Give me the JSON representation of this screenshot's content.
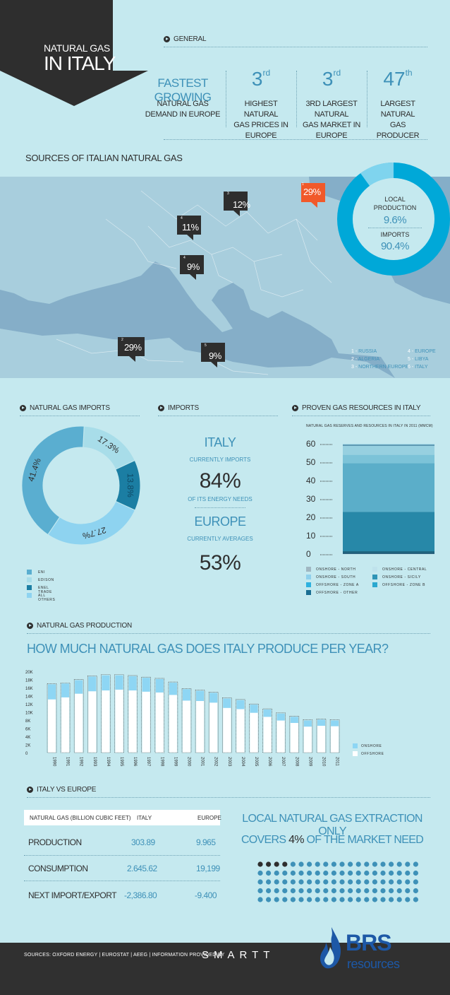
{
  "title": {
    "line1": "NATURAL GAS",
    "line2": "IN ITALY"
  },
  "general": {
    "header": "GENERAL",
    "stats": [
      {
        "big": "FASTEST GROWING",
        "sup": "",
        "desc1": "NATURAL GAS",
        "desc2": "DEMAND IN EUROPE"
      },
      {
        "big": "3",
        "sup": "rd",
        "desc1": "HIGHEST NATURAL",
        "desc2": "GAS PRICES IN EUROPE"
      },
      {
        "big": "3",
        "sup": "rd",
        "desc1": "3RD LARGEST NATURAL",
        "desc2": "GAS MARKET IN EUROPE"
      },
      {
        "big": "47",
        "sup": "th",
        "desc1": "LARGEST NATURAL",
        "desc2": "GAS PRODUCER"
      }
    ]
  },
  "sources": {
    "header": "SOURCES OF ITALIAN NATURAL GAS",
    "pins": [
      {
        "num": "1",
        "value": "29%"
      },
      {
        "num": "3",
        "value": "12%"
      },
      {
        "num": "4",
        "value": "11%"
      },
      {
        "num": "4",
        "value": "9%"
      },
      {
        "num": "2",
        "value": "29%"
      },
      {
        "num": "5",
        "value": "9%"
      }
    ],
    "local": {
      "label1": "LOCAL",
      "label2": "PRODUCTION",
      "value": "9.6%"
    },
    "imports": {
      "label": "IMPORTS",
      "value": "90.4%"
    },
    "legend": [
      {
        "num": "1",
        "name": "RUSSIA"
      },
      {
        "num": "2",
        "name": "ALGERIA"
      },
      {
        "num": "3",
        "name": "NORTHERN EUROPE"
      },
      {
        "num": "4",
        "name": "EUROPE"
      },
      {
        "num": "5",
        "name": "LIBYA"
      },
      {
        "num": "6",
        "name": "ITALY"
      }
    ]
  },
  "imports_section": {
    "header1": "NATURAL GAS IMPORTS",
    "header2": "IMPORTS",
    "header3": "PROVEN GAS RESOURCES IN ITALY",
    "italy": "ITALY",
    "currently_imports": "CURRENTLY IMPORTS",
    "italy_value": "84%",
    "energy_needs": "OF ITS ENERGY NEEDS",
    "europe": "EUROPE",
    "currently_averages": "CURRENTLY AVERAGES",
    "europe_value": "53%"
  },
  "colors": {
    "accent": "#3e91b8",
    "dark": "#2e2e2e",
    "bg": "#c5e9ef",
    "orange": "#f1592a"
  },
  "chart_data": [
    {
      "type": "pie",
      "labels": [
        "ENI",
        "EDISON",
        "ENEL TRADE",
        "ALL OTHERS"
      ],
      "values": [
        41.4,
        17.3,
        13.8,
        27.7
      ],
      "value_labels": [
        "41.4%",
        "17.3%",
        "13.8%",
        "27.7%"
      ],
      "colors": [
        "#5aaed0",
        "#a8dde9",
        "#1b7ea3",
        "#8ed3f0"
      ]
    },
    {
      "type": "bar",
      "title": "NATURAL GAS RESERVES AND RESOURCES IN ITALY IN 2011 (MMCM)",
      "ylim": [
        0,
        60
      ],
      "y_ticks": [
        "0",
        "10",
        "20",
        "30",
        "40",
        "50",
        "60"
      ],
      "series": [
        {
          "name": "ONSHORE - NORTH",
          "value": 0.5,
          "color": "#2b5d7a"
        },
        {
          "name": "ONSHORE - CENTRAL",
          "value": 1.0,
          "color": "#165b76"
        },
        {
          "name": "ONSHORE - SOUTH",
          "value": 21.5,
          "color": "#2788a8"
        },
        {
          "name": "ONSHORE - SICILY",
          "value": 26.5,
          "color": "#5baec9"
        },
        {
          "name": "OFFSHORE - ZONE A",
          "value": 4.5,
          "color": "#7cc3d8"
        },
        {
          "name": "OFFSHORE - ZONE B",
          "value": 5.0,
          "color": "#97d0e0"
        },
        {
          "name": "OFFSHORE - OTHER",
          "value": 0.5,
          "color": "#2e6e90"
        }
      ],
      "legend": [
        {
          "name": "ONSHORE - NORTH",
          "color": "#a0b7c2"
        },
        {
          "name": "ONSHORE - CENTRAL",
          "color": "#bfe2ec"
        },
        {
          "name": "ONSHORE - SOUTH",
          "color": "#8fd0ec"
        },
        {
          "name": "ONSHORE - SICILY",
          "color": "#2f94b6"
        },
        {
          "name": "OFFSHORE - ZONE A",
          "color": "#2fb1df"
        },
        {
          "name": "OFFSHORE - ZONE B",
          "color": "#2ba8cf"
        },
        {
          "name": "OFFSHORE - OTHER",
          "color": "#1a6e92"
        }
      ]
    },
    {
      "type": "bar",
      "title": "HOW MUCH NATURAL GAS DOES ITALY PRODUCE PER YEAR?",
      "categories": [
        "1990",
        "1991",
        "1992",
        "1993",
        "1994",
        "1995",
        "1996",
        "1997",
        "1998",
        "1999",
        "2000",
        "2001",
        "2002",
        "2003",
        "2004",
        "2005",
        "2006",
        "2007",
        "2008",
        "2009",
        "2010",
        "2011"
      ],
      "y_ticks": [
        "0",
        "2K",
        "4K",
        "6K",
        "8K",
        "10K",
        "12K",
        "14K",
        "16K",
        "18K",
        "20K"
      ],
      "ylim": [
        0,
        20000
      ],
      "series": [
        {
          "name": "ONSHORE",
          "values": [
            3700,
            3400,
            3300,
            3600,
            3700,
            3500,
            3500,
            3400,
            3300,
            3000,
            2800,
            2500,
            2400,
            2300,
            2200,
            2000,
            1800,
            1700,
            1500,
            1500,
            1500,
            1400
          ]
        },
        {
          "name": "OFFSHORE",
          "values": [
            13100,
            13600,
            14500,
            15100,
            15300,
            15500,
            15300,
            15000,
            14800,
            14200,
            12800,
            12700,
            12300,
            11000,
            10700,
            9800,
            8800,
            7900,
            7300,
            6400,
            6600,
            6500
          ]
        }
      ],
      "legend": [
        {
          "name": "ONSHORE",
          "color": "#8ed6f4"
        },
        {
          "name": "OFFSHORE",
          "color": "#ffffff"
        }
      ]
    }
  ],
  "production": {
    "header": "NATURAL GAS PRODUCTION",
    "question": "HOW MUCH NATURAL GAS DOES ITALY PRODUCE PER YEAR?"
  },
  "comparison": {
    "header": "ITALY VS EUROPE",
    "table_head": {
      "label": "NATURAL GAS (BILLION CUBIC FEET)",
      "italy": "ITALY",
      "europe": "EUROPE"
    },
    "rows": [
      {
        "label": "PRODUCTION",
        "italy": "303.89",
        "europe": "9.965"
      },
      {
        "label": "CONSUMPTION",
        "italy": "2.645.62",
        "europe": "19,199"
      },
      {
        "label": "NEXT IMPORT/EXPORT",
        "italy": "-2,386.80",
        "europe": "-9.400"
      }
    ],
    "callout_line1": "LOCAL NATURAL GAS EXTRACTION ONLY",
    "callout_pre": "COVERS",
    "callout_value": "4%",
    "callout_post": "OF THE MARKET NEED",
    "dots": {
      "total": 100,
      "highlighted": 4
    }
  },
  "footer": {
    "sources": "SOURCES: OXFORD ENERGY | EUROSTAT | AEEG | INFORMATION PROVIDED BY",
    "smartt": "SMARTT",
    "brand1": "BRS",
    "brand2": "resources"
  }
}
